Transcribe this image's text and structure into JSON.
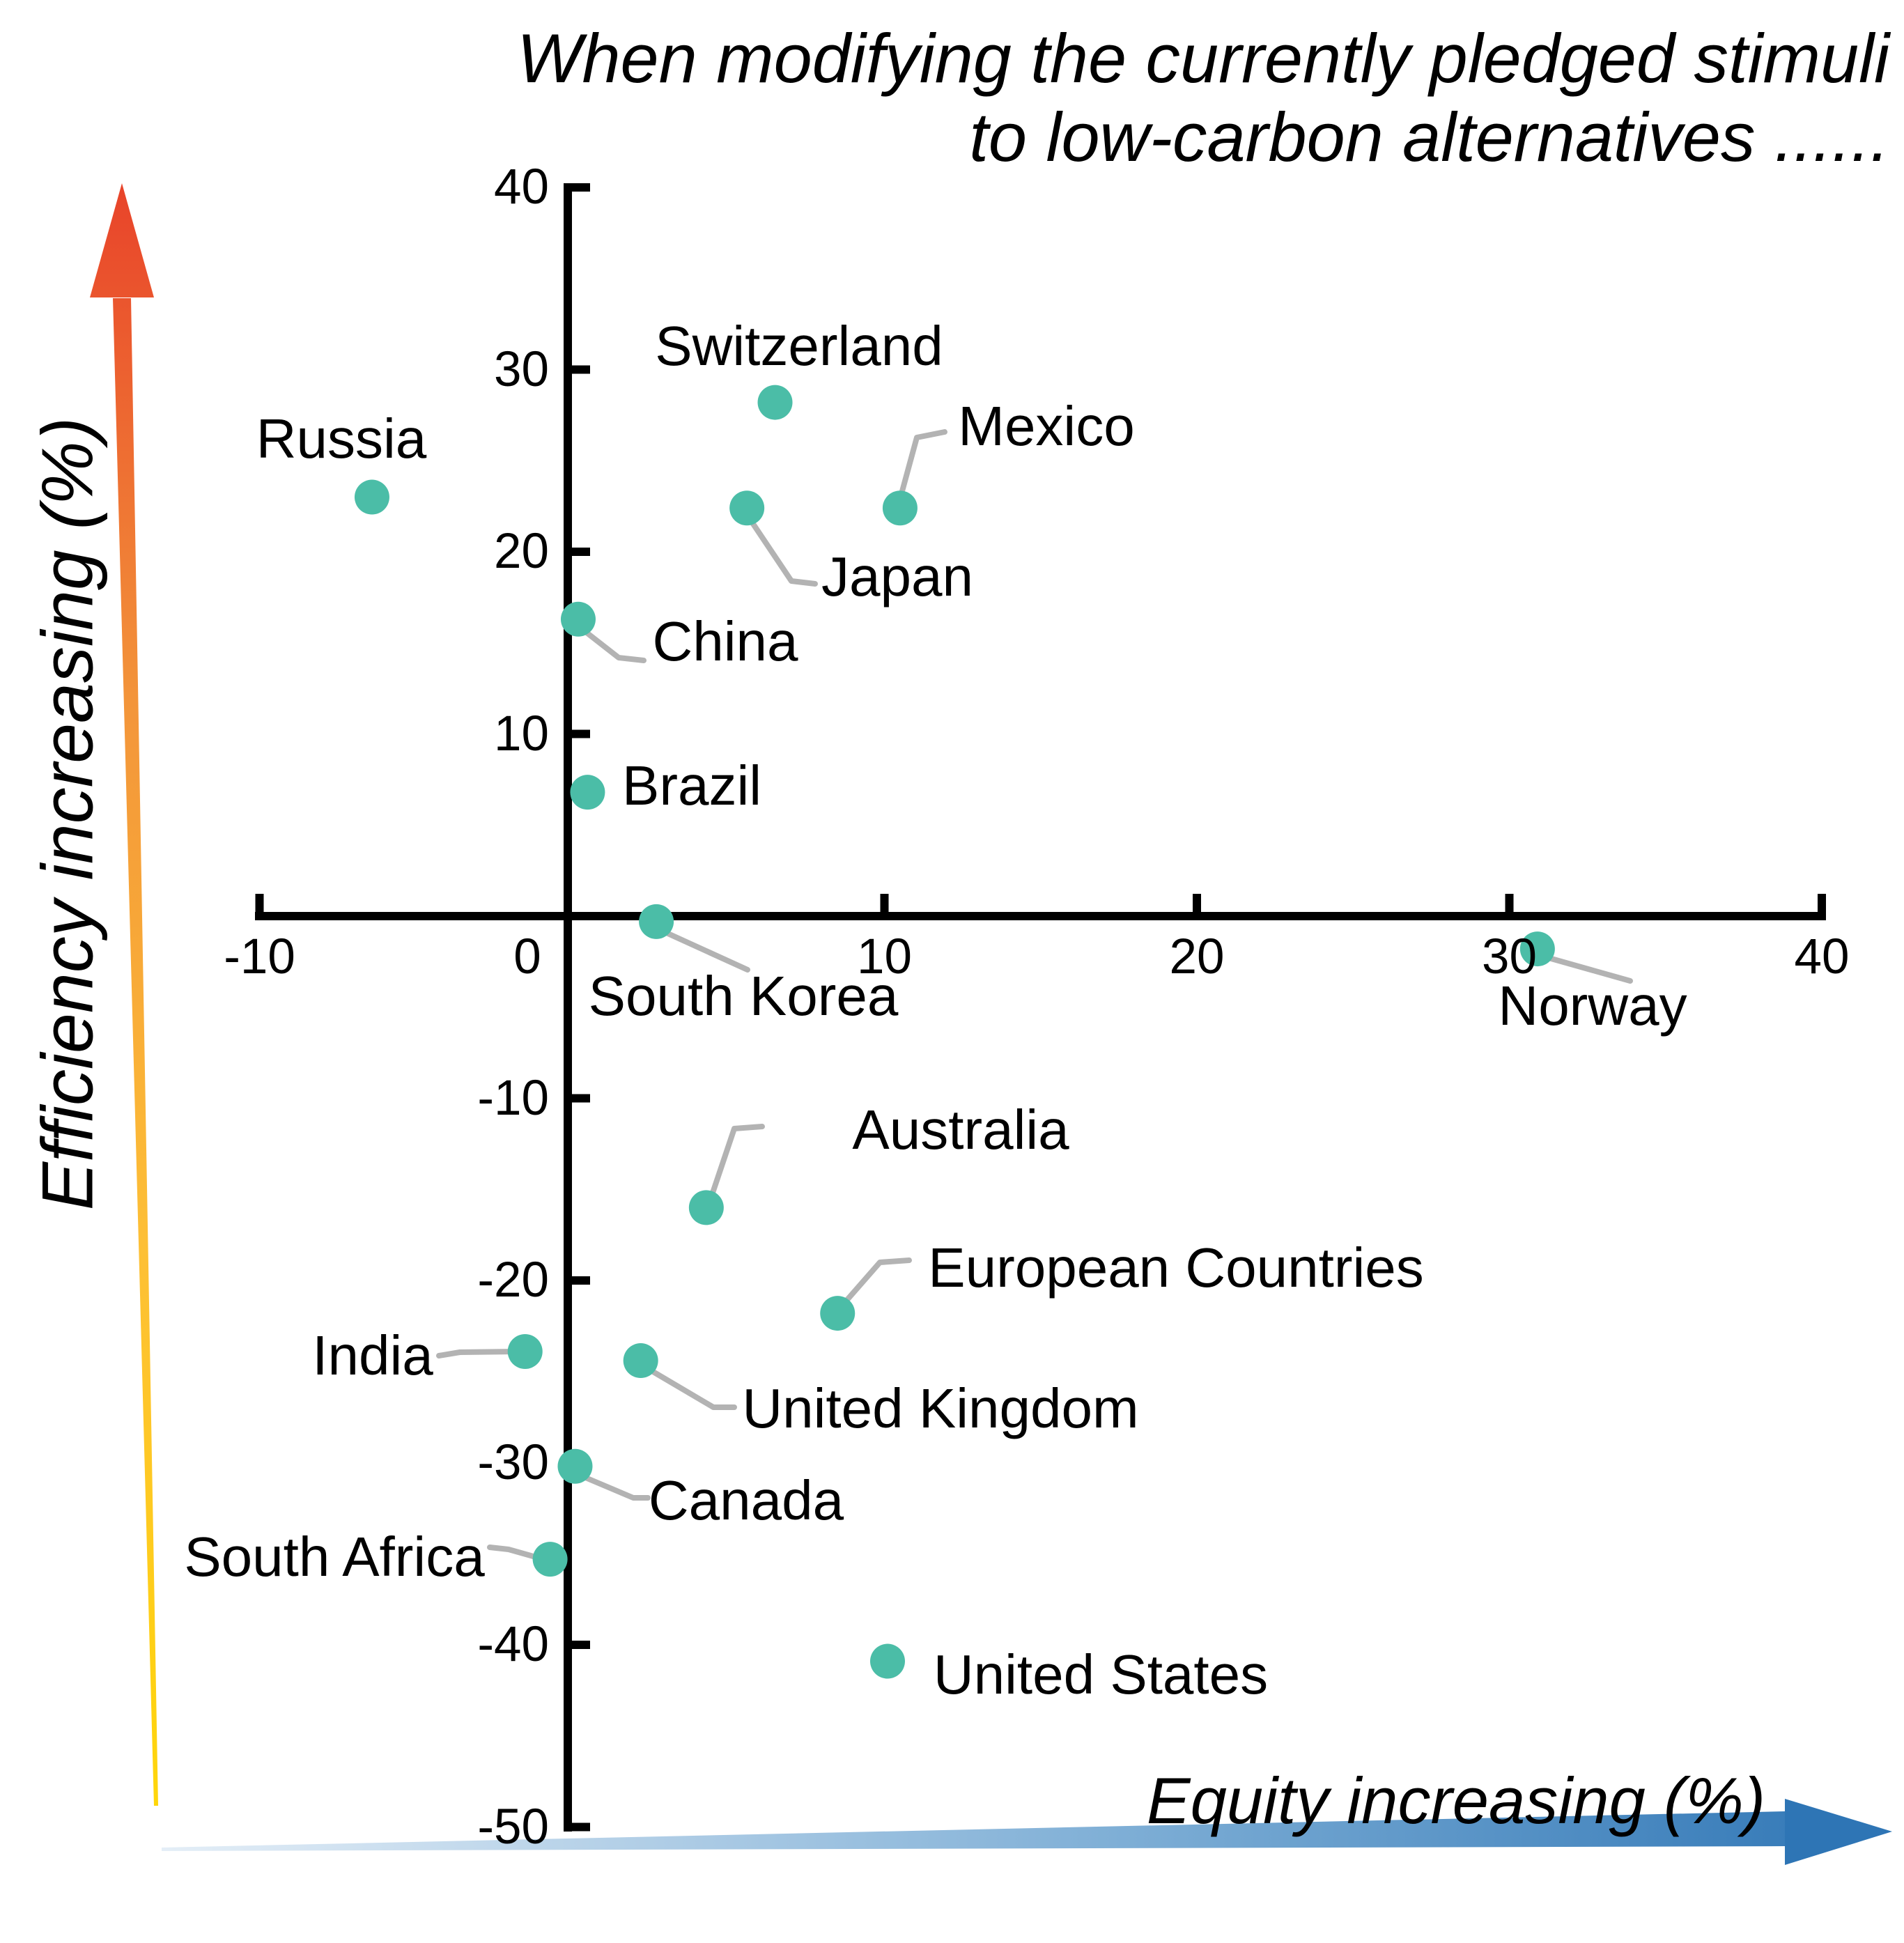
{
  "figure": {
    "title_line1": "When modifying the currently pledged stimuli",
    "title_line2": "to low-carbon alternatives ......",
    "x_axis_label": "Equity increasing (%)",
    "y_axis_label": "Efficiency increasing (%)"
  },
  "chart_data": {
    "type": "scatter",
    "title": "When modifying the currently pledged stimuli to low-carbon alternatives ......",
    "xlabel": "Equity increasing (%)",
    "ylabel": "Efficiency increasing (%)",
    "xlim": [
      -10,
      40
    ],
    "ylim": [
      -50,
      40
    ],
    "x_ticks": [
      -10,
      0,
      10,
      20,
      30,
      40
    ],
    "y_ticks": [
      40,
      30,
      20,
      10,
      -10,
      -20,
      -30,
      -40,
      -50
    ],
    "grid": false,
    "legend": "none",
    "marker_color": "#4bbda7",
    "leader_line_color": "#b3b3b3",
    "axis_color": "#000000",
    "y_arrow_gradient": [
      "#ffd60a",
      "#f5a03a",
      "#e8432a"
    ],
    "x_arrow_gradient": [
      "#e4eef7",
      "#7fafd6",
      "#2e75b5"
    ],
    "points": [
      {
        "label": "Russia",
        "x": -6.4,
        "y": 23.0
      },
      {
        "label": "Switzerland",
        "x": 6.5,
        "y": 28.2
      },
      {
        "label": "Japan",
        "x": 5.6,
        "y": 22.4
      },
      {
        "label": "Mexico",
        "x": 10.5,
        "y": 22.4
      },
      {
        "label": "China",
        "x": 0.2,
        "y": 16.3
      },
      {
        "label": "Brazil",
        "x": 0.5,
        "y": 6.8
      },
      {
        "label": "South Korea",
        "x": 2.7,
        "y": -0.3
      },
      {
        "label": "Norway",
        "x": 30.9,
        "y": -1.8
      },
      {
        "label": "Australia",
        "x": 4.3,
        "y": -16.0
      },
      {
        "label": "European Countries",
        "x": 8.5,
        "y": -21.8
      },
      {
        "label": "India",
        "x": -1.5,
        "y": -23.9
      },
      {
        "label": "United Kingdom",
        "x": 2.2,
        "y": -24.4
      },
      {
        "label": "Canada",
        "x": 0.1,
        "y": -30.2
      },
      {
        "label": "South Africa",
        "x": -0.7,
        "y": -35.3
      },
      {
        "label": "United States",
        "x": 10.1,
        "y": -40.9
      }
    ]
  }
}
